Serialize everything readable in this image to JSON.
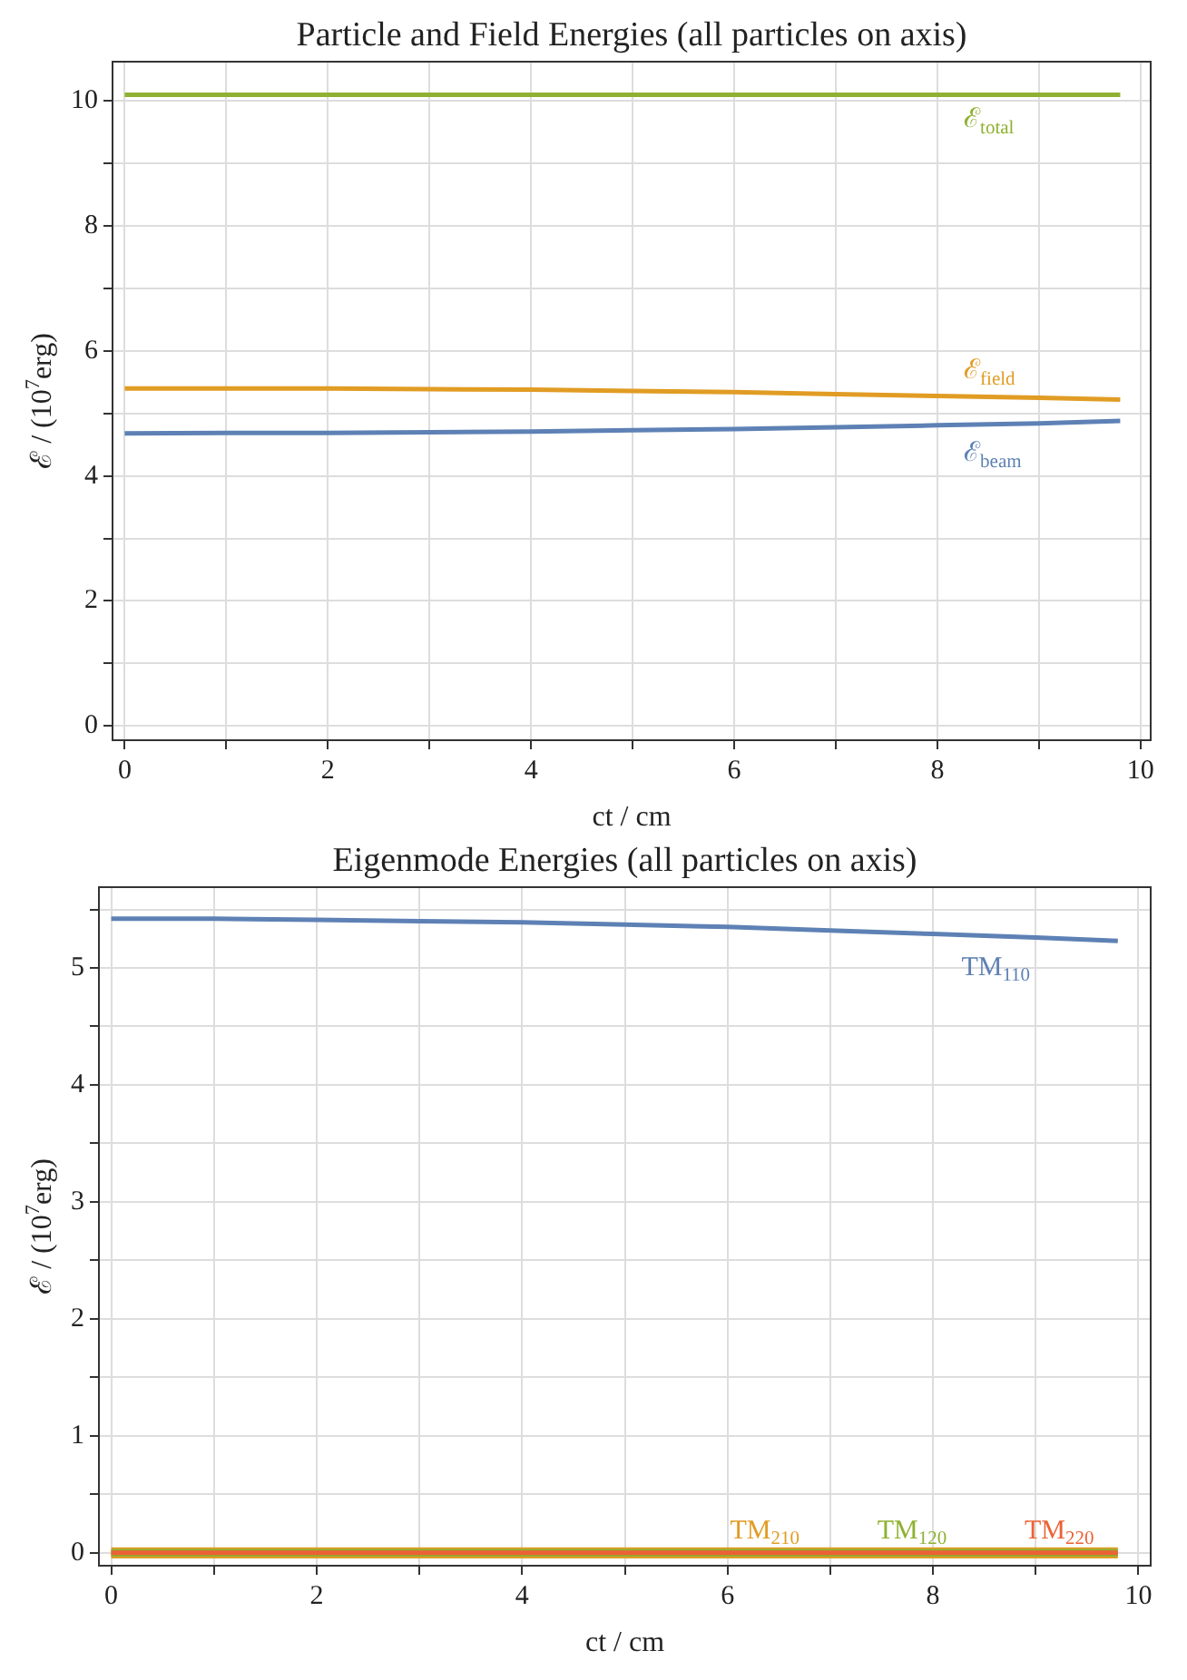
{
  "chart_data": [
    {
      "type": "line",
      "title": "Particle and Field Energies (all particles on axis)",
      "xlabel": "ct / cm",
      "ylabel": "ℰ / (10$^{7}$erg)",
      "x": [
        0,
        1,
        2,
        3,
        4,
        5,
        6,
        7,
        8,
        9,
        9.8
      ],
      "series": [
        {
          "name": "ℰ$_{total}$",
          "color": "#8fb131",
          "values": [
            10.1,
            10.1,
            10.1,
            10.1,
            10.1,
            10.1,
            10.1,
            10.1,
            10.1,
            10.1,
            10.1
          ]
        },
        {
          "name": "ℰ$_{field}$",
          "color": "#e19c24",
          "values": [
            5.4,
            5.4,
            5.4,
            5.39,
            5.38,
            5.36,
            5.34,
            5.31,
            5.28,
            5.25,
            5.22
          ]
        },
        {
          "name": "ℰ$_{beam}$",
          "color": "#5e81b5",
          "values": [
            4.68,
            4.69,
            4.69,
            4.7,
            4.71,
            4.73,
            4.75,
            4.78,
            4.81,
            4.84,
            4.88
          ]
        }
      ],
      "xlim": [
        -0.12,
        10.1
      ],
      "ylim": [
        -0.23,
        10.63
      ],
      "xticks": [
        0,
        {
          "value": 1,
          "label": null
        },
        2,
        {
          "value": 3,
          "label": null
        },
        4,
        {
          "value": 5,
          "label": null
        },
        6,
        {
          "value": 7,
          "label": null
        },
        8,
        {
          "value": 9,
          "label": null
        },
        10
      ],
      "yticks": [
        0,
        {
          "value": 1,
          "label": null
        },
        2,
        {
          "value": 3,
          "label": null
        },
        4,
        {
          "value": 5,
          "label": null
        },
        6,
        {
          "value": 7,
          "label": null
        },
        8,
        {
          "value": 9,
          "label": null
        },
        10
      ],
      "grid": true,
      "legend": false,
      "marker": "none",
      "line_style": "solid"
    },
    {
      "type": "line",
      "title": "Eigenmode Energies (all particles on axis)",
      "xlabel": "ct / cm",
      "ylabel": "ℰ / (10$^{7}$erg)",
      "x": [
        0,
        1,
        2,
        3,
        4,
        5,
        6,
        7,
        8,
        9,
        9.8
      ],
      "series": [
        {
          "name": "TM$_{110}$",
          "color": "#5e81b5",
          "values": [
            5.42,
            5.42,
            5.41,
            5.4,
            5.39,
            5.37,
            5.35,
            5.32,
            5.29,
            5.26,
            5.23
          ]
        },
        {
          "name": "TM$_{210}$",
          "color": "#e19c24",
          "values": [
            0,
            0,
            0,
            0,
            0,
            0,
            0,
            0,
            0,
            0,
            0
          ]
        },
        {
          "name": "TM$_{120}$",
          "color": "#8fb131",
          "values": [
            0,
            0,
            0,
            0,
            0,
            0,
            0,
            0,
            0,
            0,
            0
          ]
        },
        {
          "name": "TM$_{220}$",
          "color": "#eb6235",
          "values": [
            0,
            0,
            0,
            0,
            0,
            0,
            0,
            0,
            0,
            0,
            0
          ]
        }
      ],
      "xlim": [
        -0.12,
        10.12
      ],
      "ylim": [
        -0.11,
        5.69
      ],
      "xticks": [
        0,
        {
          "value": 1,
          "label": null
        },
        2,
        {
          "value": 3,
          "label": null
        },
        4,
        {
          "value": 5,
          "label": null
        },
        6,
        {
          "value": 7,
          "label": null
        },
        8,
        {
          "value": 9,
          "label": null
        },
        10
      ],
      "yticks": [
        0,
        {
          "value": 0.5,
          "label": null
        },
        1,
        {
          "value": 1.5,
          "label": null
        },
        2,
        {
          "value": 2.5,
          "label": null
        },
        3,
        {
          "value": 3.5,
          "label": null
        },
        4,
        {
          "value": 4.5,
          "label": null
        },
        5,
        {
          "value": 5.5,
          "label": null
        }
      ],
      "grid": true,
      "legend": false,
      "marker": "none",
      "line_style": "solid"
    }
  ]
}
